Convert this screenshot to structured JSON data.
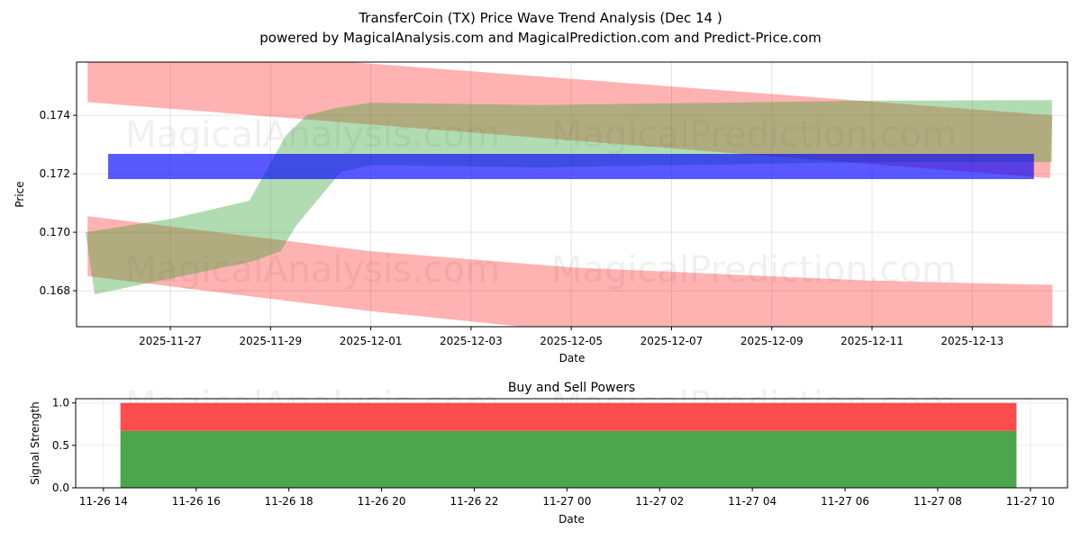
{
  "title": "TransferCoin (TX) Price Wave Trend Analysis (Dec 14 )",
  "subtitle": "powered by MagicalAnalysis.com and MagicalPrediction.com and Predict-Price.com",
  "watermarks": [
    "MagicalAnalysis.com",
    "MagicalPrediction.com"
  ],
  "colors": {
    "red_band": "#ff0000",
    "green_band": "#2ca02c",
    "blue_band": "#0000ff",
    "sell": "#ff4c4c",
    "buy": "#4ca64c"
  },
  "chart_data": [
    {
      "type": "area",
      "title": "",
      "xlabel": "Date",
      "ylabel": "Price",
      "x_unit": "days since 2025-11-27",
      "xticks": [
        "2025-11-27",
        "2025-11-29",
        "2025-12-01",
        "2025-12-03",
        "2025-12-05",
        "2025-12-07",
        "2025-12-09",
        "2025-12-11",
        "2025-12-13"
      ],
      "yticks": [
        "0.168",
        "0.170",
        "0.172",
        "0.174"
      ],
      "ylim": [
        0.16677,
        0.17582
      ],
      "xlim": [
        -1.87,
        17.9
      ],
      "grid": true,
      "series": [
        {
          "name": "upper-red-band",
          "color": "red",
          "upper": [
            [
              -1.65,
              0.1765
            ],
            [
              17.6,
              0.174
            ]
          ],
          "lower": [
            [
              -1.65,
              0.17445
            ],
            [
              17.55,
              0.17185
            ]
          ]
        },
        {
          "name": "lower-red-band",
          "color": "red",
          "upper": [
            [
              -1.65,
              0.17055
            ],
            [
              4,
              0.16935
            ],
            [
              8,
              0.1688
            ],
            [
              13.9,
              0.16835
            ],
            [
              17.6,
              0.1682
            ]
          ],
          "lower": [
            [
              -1.65,
              0.1685
            ],
            [
              4,
              0.1673
            ],
            [
              8,
              0.1666
            ],
            [
              17.6,
              0.166
            ]
          ]
        },
        {
          "name": "green-band",
          "color": "green",
          "upper": [
            [
              -1.69,
              0.17
            ],
            [
              0.02,
              0.17046
            ],
            [
              1.58,
              0.17108
            ],
            [
              2.3,
              0.1733
            ],
            [
              2.72,
              0.174
            ],
            [
              3.3,
              0.17425
            ],
            [
              4.01,
              0.17443
            ],
            [
              7.39,
              0.17435
            ],
            [
              13.87,
              0.1745
            ],
            [
              17.59,
              0.17452
            ]
          ],
          "lower": [
            [
              -1.51,
              0.16788
            ],
            [
              1.64,
              0.169
            ],
            [
              2.2,
              0.16935
            ],
            [
              2.5,
              0.1702
            ],
            [
              3.4,
              0.17206
            ],
            [
              4.01,
              0.1723
            ],
            [
              7.39,
              0.17222
            ],
            [
              13.87,
              0.1724
            ],
            [
              17.59,
              0.1724
            ]
          ]
        },
        {
          "name": "blue-band",
          "color": "blue",
          "upper": [
            [
              -1.24,
              0.17268
            ],
            [
              17.23,
              0.17268
            ]
          ],
          "lower": [
            [
              -1.24,
              0.17182
            ],
            [
              17.23,
              0.17182
            ]
          ]
        }
      ]
    },
    {
      "type": "bar",
      "title": "Buy and Sell Powers",
      "xlabel": "Date",
      "ylabel": "Signal Strength",
      "x_unit": "hours since 11-26 14:00",
      "xticks": [
        "11-26 14",
        "11-26 16",
        "11-26 18",
        "11-26 20",
        "11-26 22",
        "11-27 00",
        "11-27 02",
        "11-27 04",
        "11-27 06",
        "11-27 08",
        "11-27 10"
      ],
      "yticks": [
        "0.0",
        "0.5",
        "1.0"
      ],
      "ylim": [
        0,
        1.05
      ],
      "xlim": [
        -1.2,
        41.6
      ],
      "grid": true,
      "bar": {
        "start": 0.73,
        "end": 39.4
      },
      "series": [
        {
          "name": "Buy",
          "value": 0.67
        },
        {
          "name": "Sell",
          "value": 0.33
        }
      ]
    }
  ]
}
